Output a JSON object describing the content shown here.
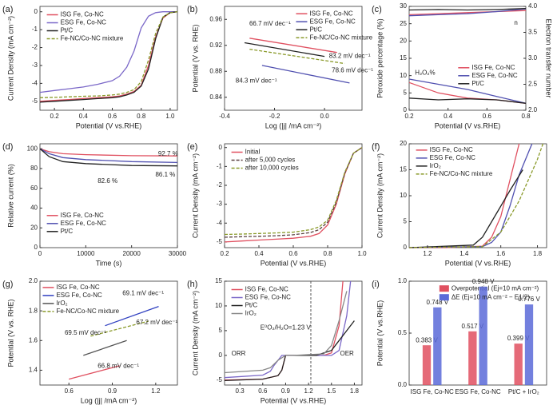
{
  "chart_data": [
    {
      "type": "line",
      "label": "(a)",
      "xlabel": "Potential (V vs.RHE)",
      "ylabel": "Current Density (mA cm⁻²)",
      "xlim": [
        0.1,
        1.05
      ],
      "ylim": [
        -5.5,
        0.3
      ],
      "xticks": [
        0.2,
        0.4,
        0.6,
        0.8,
        {
          "value": 1.0,
          "label": "1.0"
        }
      ],
      "yticks": [
        -5,
        -4,
        -3,
        -2,
        -1,
        0
      ],
      "series": [
        {
          "name": "ISG Fe, Co-NC",
          "color": "#e05060",
          "x": [
            0.1,
            0.2,
            0.3,
            0.4,
            0.5,
            0.6,
            0.65,
            0.7,
            0.75,
            0.8,
            0.85,
            0.9,
            0.95,
            1.0,
            1.05
          ],
          "values": [
            -5.0,
            -4.95,
            -4.9,
            -4.85,
            -4.8,
            -4.75,
            -4.7,
            -4.6,
            -4.45,
            -4.1,
            -3.0,
            -1.4,
            -0.35,
            -0.05,
            0
          ]
        },
        {
          "name": "ESG Fe, Co-NC",
          "color": "#7b68c8",
          "x": [
            0.1,
            0.2,
            0.3,
            0.4,
            0.5,
            0.6,
            0.65,
            0.7,
            0.75,
            0.8,
            0.85,
            0.9,
            0.95,
            1.0,
            1.05
          ],
          "values": [
            -4.5,
            -4.4,
            -4.3,
            -4.2,
            -4.05,
            -3.85,
            -3.6,
            -3.1,
            -2.2,
            -0.9,
            -0.25,
            -0.05,
            0,
            0,
            0
          ]
        },
        {
          "name": "Pt/C",
          "color": "#222222",
          "x": [
            0.1,
            0.2,
            0.3,
            0.4,
            0.5,
            0.6,
            0.65,
            0.7,
            0.75,
            0.8,
            0.85,
            0.9,
            0.95,
            1.0,
            1.05
          ],
          "values": [
            -5.05,
            -5.0,
            -4.95,
            -4.9,
            -4.85,
            -4.8,
            -4.75,
            -4.65,
            -4.5,
            -4.15,
            -3.2,
            -1.5,
            -0.3,
            -0.05,
            0
          ]
        },
        {
          "name": "Fe-NC/Co-NC mixture",
          "color": "#8a9a2a",
          "dash": true,
          "x": [
            0.1,
            0.2,
            0.3,
            0.4,
            0.5,
            0.6,
            0.65,
            0.7,
            0.75,
            0.8,
            0.85,
            0.9,
            0.95,
            1.0,
            1.05
          ],
          "values": [
            -4.8,
            -4.78,
            -4.75,
            -4.72,
            -4.7,
            -4.65,
            -4.6,
            -4.5,
            -4.35,
            -3.9,
            -2.7,
            -1.2,
            -0.3,
            -0.05,
            0
          ]
        }
      ]
    },
    {
      "type": "line",
      "label": "(b)",
      "xlabel": "Log (|j| /mA  cm⁻²)",
      "ylabel": "Potential  (V vs. RHE)",
      "xlim": [
        -0.4,
        0.15
      ],
      "ylim": [
        0.82,
        0.98
      ],
      "xticks": [
        -0.4,
        -0.2,
        {
          "value": 0,
          "label": "0.0"
        }
      ],
      "yticks": [
        0.84,
        0.88,
        0.92,
        0.96
      ],
      "series": [
        {
          "name": "ISG Fe, Co-NC",
          "color": "#e05060",
          "x": [
            -0.3,
            0.05
          ],
          "values": [
            0.931,
            0.909
          ]
        },
        {
          "name": "ESG Fe, Co-NC",
          "color": "#5050b0",
          "x": [
            -0.25,
            0.1
          ],
          "values": [
            0.889,
            0.862
          ]
        },
        {
          "name": "Pt/C",
          "color": "#222222",
          "x": [
            -0.32,
            0.0
          ],
          "values": [
            0.924,
            0.903
          ]
        },
        {
          "name": "Fe-NC/Co-NC mixture",
          "color": "#8a9a2a",
          "dash": true,
          "x": [
            -0.3,
            0.08
          ],
          "values": [
            0.914,
            0.892
          ]
        }
      ],
      "annotations": [
        {
          "text": "66.7 mV dec⁻¹",
          "color": "#e05060"
        },
        {
          "text": "83.2 mV dec⁻¹",
          "color": "#222222"
        },
        {
          "text": "78.6 mV dec⁻¹",
          "color": "#8a9a2a"
        },
        {
          "text": "84.3 mV dec⁻¹",
          "color": "#5050b0"
        }
      ]
    },
    {
      "type": "line",
      "label": "(c)",
      "xlabel": "Potential (V vs.RHE)",
      "ylabel": "Peroxide percentage (%)",
      "y2label": "Electron transfer number",
      "xlim": [
        0.2,
        0.8
      ],
      "ylim": [
        0,
        30
      ],
      "y2lim": [
        2.0,
        4.0
      ],
      "xticks": [
        0.2,
        0.4,
        0.6,
        0.8
      ],
      "yticks": [
        0,
        5,
        10,
        15,
        20,
        25,
        30
      ],
      "y2ticks": [
        {
          "value": 2.0,
          "label": "2.0"
        },
        2.5,
        {
          "value": 3.0,
          "label": "3.0"
        },
        3.5,
        {
          "value": 4.0,
          "label": "4.0"
        }
      ],
      "series": [
        {
          "name": "ISG Fe, Co-NC",
          "color": "#e05060",
          "x": [
            0.2,
            0.35,
            0.5,
            0.65,
            0.8
          ],
          "values": [
            8,
            5,
            3.5,
            3,
            2
          ],
          "y2_values": [
            3.84,
            3.86,
            3.88,
            3.9,
            3.92
          ]
        },
        {
          "name": "ESG Fe, Co-NC",
          "color": "#5050b0",
          "x": [
            0.2,
            0.35,
            0.5,
            0.65,
            0.8
          ],
          "values": [
            9,
            7.5,
            6,
            4,
            2
          ],
          "y2_values": [
            3.82,
            3.84,
            3.86,
            3.9,
            3.95
          ]
        },
        {
          "name": "Pt/C",
          "color": "#222222",
          "x": [
            0.2,
            0.35,
            0.5,
            0.65,
            0.8
          ],
          "values": [
            3.5,
            3,
            3.3,
            3,
            2
          ],
          "y2_values": [
            3.93,
            3.94,
            3.93,
            3.94,
            3.96
          ]
        }
      ],
      "annotations": [
        {
          "text": "n",
          "color": "#222222"
        },
        {
          "text": "H₂O₂%",
          "color": "#222222"
        }
      ]
    },
    {
      "type": "line",
      "label": "(d)",
      "xlabel": "Time (s)",
      "ylabel": "Relative current (%)",
      "xlim": [
        0,
        30000
      ],
      "ylim": [
        0,
        105
      ],
      "xticks": [
        0,
        10000,
        20000,
        30000
      ],
      "yticks": [
        0,
        20,
        40,
        60,
        80,
        100
      ],
      "series": [
        {
          "name": "ISG Fe, Co-NC",
          "color": "#e05060",
          "x": [
            0,
            2000,
            5000,
            10000,
            20000,
            30000
          ],
          "values": [
            100,
            97,
            95,
            94,
            93,
            92.7
          ]
        },
        {
          "name": "ESG Fe, Co-NC",
          "color": "#5050b0",
          "x": [
            0,
            2000,
            5000,
            10000,
            20000,
            30000
          ],
          "values": [
            100,
            95,
            91,
            89,
            87,
            86.1
          ]
        },
        {
          "name": "Pt/C",
          "color": "#222222",
          "x": [
            0,
            2000,
            5000,
            10000,
            20000,
            30000
          ],
          "values": [
            100,
            92,
            87,
            85,
            83,
            82.6
          ]
        }
      ],
      "annotations": [
        {
          "text": "92.7 %",
          "color": "#e05060"
        },
        {
          "text": "86.1 %",
          "color": "#5050b0"
        },
        {
          "text": "82.6 %",
          "color": "#222222"
        }
      ]
    },
    {
      "type": "line",
      "label": "(e)",
      "xlabel": "Potential (V vs.RHE)",
      "ylabel": "Current Density (mA cm⁻²)",
      "xlim": [
        0.2,
        1.0
      ],
      "ylim": [
        -5.3,
        0.2
      ],
      "xticks": [
        0.2,
        0.4,
        0.6,
        0.8,
        {
          "value": 1.0,
          "label": "1.0"
        }
      ],
      "yticks": [
        -5,
        -4,
        -3,
        -2,
        -1,
        0
      ],
      "series": [
        {
          "name": "Initial",
          "color": "#e05060",
          "x": [
            0.2,
            0.3,
            0.4,
            0.5,
            0.6,
            0.7,
            0.75,
            0.8,
            0.85,
            0.9,
            0.95,
            1.0
          ],
          "values": [
            -5.0,
            -4.95,
            -4.9,
            -4.85,
            -4.8,
            -4.7,
            -4.55,
            -4.1,
            -3.0,
            -1.4,
            -0.3,
            0
          ]
        },
        {
          "name": "after 5,000 cycles",
          "color": "#5a4040",
          "dash": true,
          "x": [
            0.2,
            0.3,
            0.4,
            0.5,
            0.6,
            0.7,
            0.75,
            0.8,
            0.85,
            0.9,
            0.95,
            1.0
          ],
          "values": [
            -4.75,
            -4.72,
            -4.7,
            -4.67,
            -4.62,
            -4.5,
            -4.35,
            -3.95,
            -2.9,
            -1.35,
            -0.3,
            0
          ]
        },
        {
          "name": "after 10,000 cycles",
          "color": "#8a9a2a",
          "dash": true,
          "x": [
            0.2,
            0.3,
            0.4,
            0.5,
            0.6,
            0.7,
            0.75,
            0.8,
            0.85,
            0.9,
            0.95,
            1.0
          ],
          "values": [
            -4.6,
            -4.58,
            -4.55,
            -4.52,
            -4.48,
            -4.35,
            -4.2,
            -3.85,
            -2.8,
            -1.3,
            -0.3,
            0
          ]
        }
      ]
    },
    {
      "type": "line",
      "label": "(f)",
      "xlabel": "Potential (V vs.RHE)",
      "ylabel": "Current Density (mA cm⁻²)",
      "xlim": [
        1.1,
        1.85
      ],
      "ylim": [
        0,
        20
      ],
      "xticks": [
        1.2,
        1.4,
        1.6,
        1.8
      ],
      "yticks": [
        0,
        5,
        10,
        15,
        20
      ],
      "series": [
        {
          "name": "ISG Fe, Co-NC",
          "color": "#e05060",
          "x": [
            1.1,
            1.3,
            1.5,
            1.55,
            1.6,
            1.65,
            1.7
          ],
          "values": [
            0,
            0,
            0.3,
            2,
            6,
            13,
            20
          ]
        },
        {
          "name": "ESG Fe, Co-NC",
          "color": "#5050b0",
          "x": [
            1.1,
            1.5,
            1.55,
            1.6,
            1.65,
            1.7,
            1.77
          ],
          "values": [
            0,
            0.2,
            1,
            3,
            8,
            14,
            20
          ]
        },
        {
          "name": "IrO₂",
          "color": "#222222",
          "x": [
            1.1,
            1.45,
            1.5,
            1.55,
            1.6,
            1.65,
            1.72
          ],
          "values": [
            0,
            0.5,
            2,
            5,
            8,
            11,
            15
          ]
        },
        {
          "name": "Fe-NC/Co-NC mixture",
          "color": "#8a9a2a",
          "dash": true,
          "x": [
            1.1,
            1.5,
            1.6,
            1.7,
            1.8,
            1.83
          ],
          "values": [
            0,
            0.2,
            3,
            9,
            17,
            20
          ]
        }
      ]
    },
    {
      "type": "line",
      "label": "(g)",
      "xlabel": "Log (|j| /mA  cm⁻²)",
      "ylabel": "Potential  (V vs. RHE)",
      "xlim": [
        0.4,
        1.35
      ],
      "ylim": [
        1.3,
        2.0
      ],
      "xticks": [
        0.6,
        0.9,
        1.2
      ],
      "yticks": [
        1.4,
        1.6,
        1.8,
        {
          "value": 2.0,
          "label": "2.0"
        }
      ],
      "series": [
        {
          "name": "ISG Fe, Co-NC",
          "color": "#e05060",
          "x": [
            0.6,
            0.95
          ],
          "values": [
            1.34,
            1.43
          ]
        },
        {
          "name": "ESG Fe, Co-NC",
          "color": "#3040c0",
          "x": [
            0.85,
            1.22
          ],
          "values": [
            1.7,
            1.83
          ]
        },
        {
          "name": "IrO₂",
          "color": "#555555",
          "x": [
            0.7,
            1.0
          ],
          "values": [
            1.5,
            1.6
          ]
        },
        {
          "name": "Fe-NC/Co-NC mixture",
          "color": "#8a9a2a",
          "dash": true,
          "x": [
            0.75,
            1.15
          ],
          "values": [
            1.63,
            1.73
          ]
        }
      ],
      "annotations": [
        {
          "text": "69.1 mV dec⁻¹",
          "color": "#3040c0"
        },
        {
          "text": "67.2 mV dec⁻¹",
          "color": "#8a9a2a"
        },
        {
          "text": "69.5 mV dec⁻¹",
          "color": "#222222"
        },
        {
          "text": "66.8 mV dec⁻¹",
          "color": "#e05060"
        }
      ]
    },
    {
      "type": "line",
      "label": "(h)",
      "xlabel": "Potential (V vs.RHE)",
      "ylabel": "Current Density (mA cm⁻²)",
      "xlim": [
        0.1,
        1.9
      ],
      "ylim": [
        -6,
        15
      ],
      "xticks": [
        0.3,
        0.6,
        0.9,
        1.2,
        1.5,
        1.8
      ],
      "yticks": [
        -5,
        0,
        5,
        10,
        15
      ],
      "ref_line": 1.23,
      "series": [
        {
          "name": "ISG Fe, Co-NC",
          "color": "#e05060",
          "x": [
            0.1,
            0.6,
            0.8,
            0.85,
            0.9,
            1.0,
            1.4,
            1.5,
            1.6,
            1.65
          ],
          "values": [
            -5,
            -4.8,
            -4.1,
            -3,
            0,
            0,
            0,
            0.5,
            6,
            15
          ]
        },
        {
          "name": "ESG Fe, Co-NC",
          "color": "#7b68c8",
          "x": [
            0.1,
            0.6,
            0.7,
            0.75,
            0.85,
            1.0,
            1.5,
            1.6,
            1.7,
            1.75
          ],
          "values": [
            -4.5,
            -4,
            -3.2,
            -2,
            0,
            0,
            0,
            1,
            8,
            15
          ]
        },
        {
          "name": "Pt/C",
          "color": "#222222",
          "x": [
            0.1,
            0.6,
            0.8,
            0.85,
            0.9,
            1.0,
            1.3,
            1.5,
            1.6,
            1.7,
            1.8
          ],
          "values": [
            -5.1,
            -4.8,
            -4.1,
            -3,
            0,
            0,
            0,
            1,
            3,
            5,
            7
          ]
        },
        {
          "name": "IrO₂",
          "color": "#888888",
          "x": [
            0.1,
            0.6,
            0.7,
            0.8,
            0.9,
            1.0,
            1.4,
            1.5,
            1.6,
            1.7
          ],
          "values": [
            -3.5,
            -3,
            -2.5,
            -1,
            0,
            0,
            0.3,
            2,
            7,
            13
          ]
        }
      ],
      "annotations": [
        {
          "text": "E⁰O₂/H₂O=1.23 V",
          "color": "#222222"
        },
        {
          "text": "ORR",
          "color": "#222222"
        },
        {
          "text": "OER",
          "color": "#222222"
        }
      ]
    },
    {
      "type": "bar",
      "label": "(i)",
      "ylabel": "Potential (V vs.RHE)",
      "categories": [
        "ISG Fe, Co-NC",
        "ESG Fe, Co-NC",
        "Pt/C + IrO₂"
      ],
      "ylim": [
        0,
        1.0
      ],
      "yticks": [
        {
          "value": 0,
          "label": "0.0"
        },
        0.5,
        {
          "value": 1.0,
          "label": "1.0"
        }
      ],
      "series": [
        {
          "name": "Overpotential (Ej=10 mA cm⁻²)",
          "color": "#e05060",
          "values": [
            0.383,
            0.517,
            0.399
          ],
          "value_labels": [
            "0.383 V",
            "0.517 V",
            "0.399 V"
          ]
        },
        {
          "name": "ΔE (Ej=10 mA cm⁻² − E1/2)",
          "color": "#5a6ad8",
          "values": [
            0.748,
            0.948,
            0.776
          ],
          "value_labels": [
            "0.748 V",
            "0.948 V",
            "0.776 V"
          ]
        }
      ]
    }
  ]
}
